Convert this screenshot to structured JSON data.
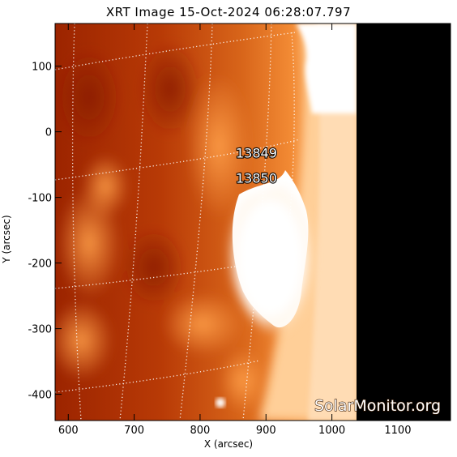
{
  "title": "XRT Image 15-Oct-2024 06:28:07.797",
  "xlabel": "X (arcsec)",
  "ylabel": "Y (arcsec)",
  "x_ticks": [
    "600",
    "700",
    "800",
    "900",
    "1000",
    "1100"
  ],
  "y_ticks": [
    "100",
    "0",
    "-100",
    "-200",
    "-300",
    "-400"
  ],
  "x_range": [
    580,
    1180
  ],
  "y_range": [
    -440,
    165
  ],
  "active_regions": [
    {
      "number": "13849",
      "x": 915,
      "y": -32
    },
    {
      "number": "13850",
      "x": 915,
      "y": -70
    }
  ],
  "watermark": "SolarMonitor.org",
  "colors": {
    "disk_dark": "#a82a00",
    "disk_mid": "#d65a12",
    "disk_bright": "#ff9b3c",
    "limb": "#ffd9a8",
    "flare": "#ffffff",
    "space": "#000000",
    "grid": "#ffffff"
  }
}
